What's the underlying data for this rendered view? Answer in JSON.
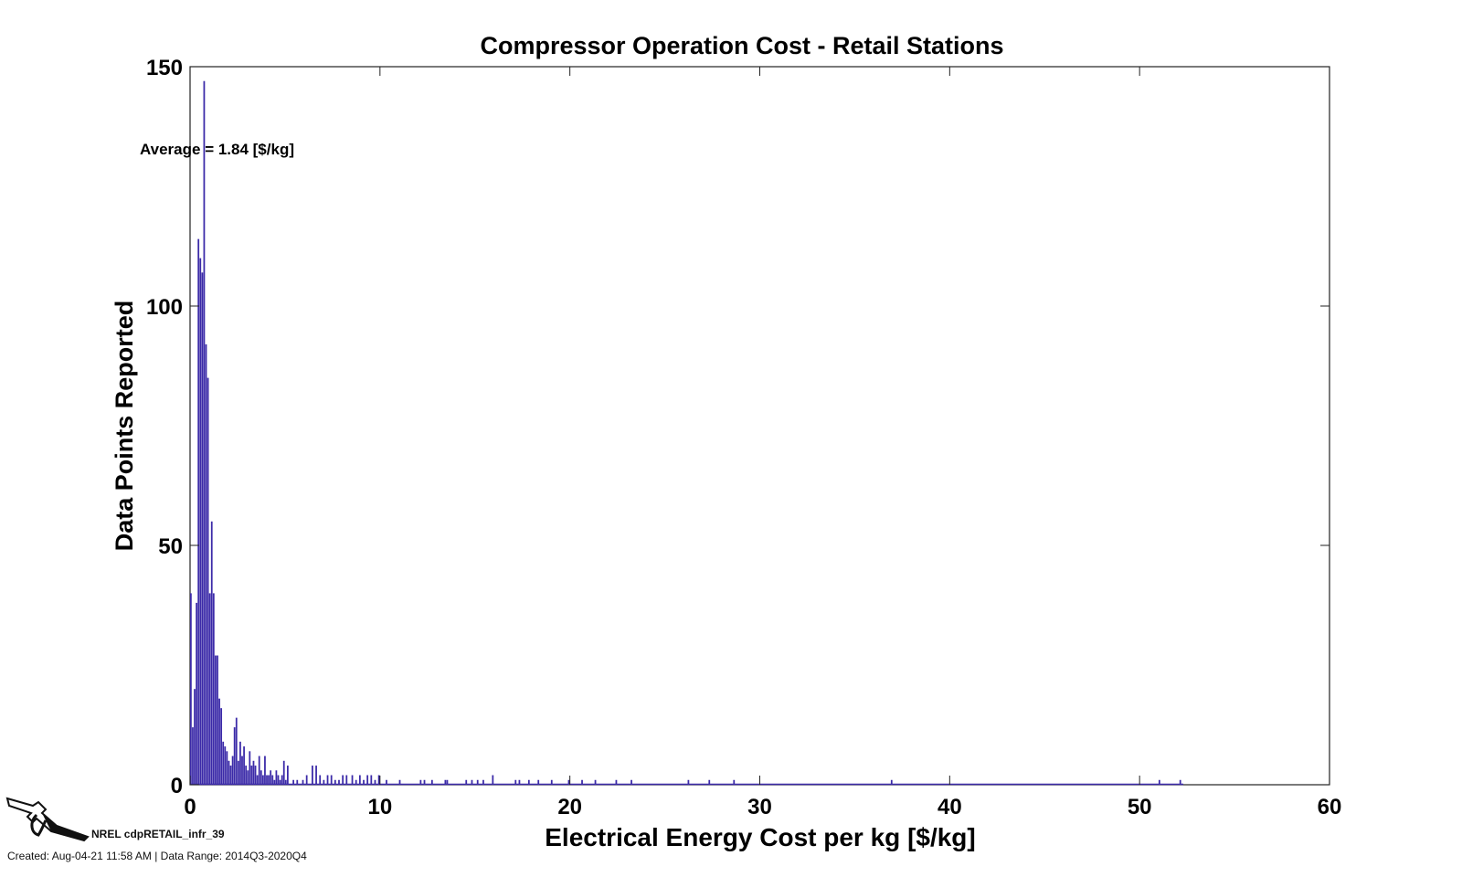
{
  "chart_data": {
    "type": "bar",
    "title": "Compressor Operation Cost - Retail Stations",
    "xlabel": "Electrical Energy Cost per kg [$/kg]",
    "ylabel": "Data Points Reported",
    "xlim": [
      0,
      60
    ],
    "ylim": [
      0,
      150
    ],
    "xticks": [
      "0",
      "10",
      "20",
      "30",
      "40",
      "50",
      "60"
    ],
    "yticks": [
      "0",
      "50",
      "100",
      "150"
    ],
    "annotation": "Average = 1.84 [$/kg]",
    "bar_color": "#3b2aa8",
    "bin_width": 0.1,
    "x": [
      0.05,
      0.15,
      0.25,
      0.35,
      0.45,
      0.55,
      0.65,
      0.75,
      0.85,
      0.95,
      1.05,
      1.15,
      1.25,
      1.35,
      1.45,
      1.55,
      1.65,
      1.75,
      1.85,
      1.95,
      2.05,
      2.15,
      2.25,
      2.35,
      2.45,
      2.55,
      2.65,
      2.75,
      2.85,
      2.95,
      3.05,
      3.15,
      3.25,
      3.35,
      3.45,
      3.55,
      3.65,
      3.75,
      3.85,
      3.95,
      4.05,
      4.15,
      4.25,
      4.35,
      4.45,
      4.55,
      4.65,
      4.75,
      4.85,
      4.95,
      5.05,
      5.15,
      5.45,
      5.65,
      5.95,
      6.15,
      6.45,
      6.65,
      6.85,
      7.05,
      7.25,
      7.45,
      7.65,
      7.85,
      8.05,
      8.25,
      8.55,
      8.75,
      8.95,
      9.15,
      9.35,
      9.55,
      9.75,
      9.95,
      10.35,
      11.05,
      12.15,
      12.35,
      12.75,
      13.45,
      13.55,
      14.55,
      14.85,
      15.15,
      15.45,
      15.95,
      17.15,
      17.35,
      17.85,
      18.35,
      19.05,
      19.95,
      20.65,
      21.35,
      22.45,
      23.25,
      26.25,
      27.35,
      28.65,
      36.95,
      51.05,
      52.15
    ],
    "values": [
      40,
      12,
      20,
      38,
      114,
      110,
      107,
      147,
      92,
      85,
      40,
      55,
      40,
      27,
      27,
      18,
      16,
      9,
      8,
      7,
      5,
      4,
      6,
      12,
      14,
      5,
      9,
      6,
      8,
      4,
      3,
      7,
      4,
      5,
      4,
      2,
      6,
      3,
      2,
      6,
      2,
      2,
      3,
      2,
      1,
      3,
      2,
      1,
      2,
      5,
      1,
      4,
      1,
      1,
      1,
      2,
      4,
      4,
      2,
      1,
      2,
      2,
      1,
      1,
      2,
      2,
      2,
      1,
      2,
      1,
      2,
      2,
      1,
      2,
      1,
      1,
      1,
      1,
      1,
      1,
      1,
      1,
      1,
      1,
      1,
      2,
      1,
      1,
      1,
      1,
      1,
      1,
      1,
      1,
      1,
      1,
      1,
      1,
      1,
      1,
      1,
      1
    ]
  },
  "footer": {
    "id": "NREL cdpRETAIL_infr_39",
    "created": "Created: Aug-04-21 11:58 AM | Data Range: 2014Q3-2020Q4"
  }
}
